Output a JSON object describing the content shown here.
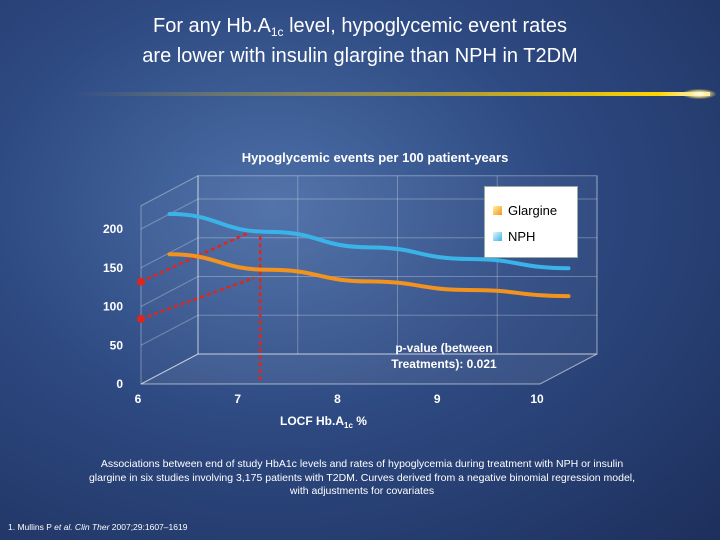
{
  "slide": {
    "title_part1": "For any Hb.A",
    "title_sub": "1c",
    "title_part2": " level, hypoglycemic event rates",
    "title_line2": "are lower with insulin glargine than NPH in T2DM",
    "rule_color": "#ffd400"
  },
  "chart_data": {
    "type": "line",
    "title": "Hypoglycemic events per 100 patient-years",
    "x": [
      6,
      7,
      8,
      9,
      10
    ],
    "x_tick_labels": [
      "6",
      "7",
      "8",
      "9",
      "10"
    ],
    "xlabel_part1": "LOCF Hb.A",
    "xlabel_sub": "1c",
    "xlabel_part2": " %",
    "ylim": [
      0,
      200
    ],
    "y_ticks": [
      0,
      50,
      100,
      150,
      200
    ],
    "y_tick_labels": [
      "0",
      "50",
      "100",
      "150",
      "200"
    ],
    "series": [
      {
        "name": "Glargine",
        "color": "#f2921f",
        "x": [
          6,
          7,
          8,
          9,
          10
        ],
        "values": [
          148,
          128,
          113,
          102,
          94
        ]
      },
      {
        "name": "NPH",
        "color": "#3ab4e8",
        "x": [
          6,
          7,
          8,
          9,
          10
        ],
        "values": [
          200,
          177,
          157,
          142,
          130
        ]
      }
    ],
    "highlight": {
      "color": "#e0261c",
      "dots": [
        [
          6,
          132
        ],
        [
          6,
          84
        ]
      ],
      "dash_x": 7,
      "dash_top": 188
    },
    "annotation_line1": "p-value (between",
    "annotation_line2": "Treatments): 0.021",
    "legend_position": "top-right"
  },
  "caption": {
    "line1": "Associations between end of study HbA1c levels and rates of hypoglycemia during treatment with NPH or insulin",
    "line2": "glargine in six studies involving 3,175 patients with T2DM. Curves derived from a negative binomial regression model,",
    "line3": "with adjustments for covariates"
  },
  "reference": {
    "part1": "1. Mullins P ",
    "italic": "et al. Clin Ther",
    "part2": " 2007;29:1607–1619"
  }
}
